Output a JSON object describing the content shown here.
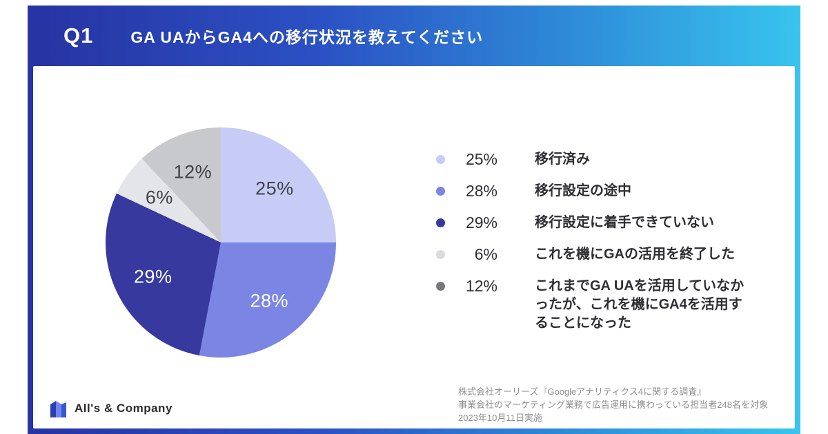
{
  "header": {
    "q_label": "Q1",
    "title": "GA UAからGA4への移行状況を教えてください"
  },
  "chart_data": {
    "type": "pie",
    "title": "GA UAからGA4への移行状況を教えてください",
    "legend_position": "right",
    "items": [
      {
        "label": "移行済み",
        "value": 25,
        "percent_text": "25%",
        "color": "#c6ccf6",
        "dot_color": "#c6ccf6",
        "label_color": "#3f4249"
      },
      {
        "label": "移行設定の途中",
        "value": 28,
        "percent_text": "28%",
        "color": "#7a85e4",
        "dot_color": "#7a85e4",
        "label_color": "#ffffff"
      },
      {
        "label": "移行設定に着手できていない",
        "value": 29,
        "percent_text": "29%",
        "color": "#37399e",
        "dot_color": "#37399e",
        "label_color": "#ffffff"
      },
      {
        "label": "これを機にGAの活用を終了した",
        "value": 6,
        "percent_text": "6%",
        "color": "#e4e5e8",
        "dot_color": "#dadbde",
        "label_color": "#3f4249"
      },
      {
        "label": "これまでGA UAを活用していなかったが、これを機にGA4を活用することになった",
        "value": 12,
        "percent_text": "12%",
        "color": "#c8c9cc",
        "dot_color": "#77787c",
        "label_color": "#3f4249"
      }
    ]
  },
  "footer": {
    "logo_text": "All's & Company",
    "source_lines": [
      "株式会社オーリーズ『Googleアナリティクス4に関する調査』",
      "事業会社のマーケティング業務で広告運用に携わっている担当者248名を対象",
      "2023年10月11日実施"
    ]
  }
}
